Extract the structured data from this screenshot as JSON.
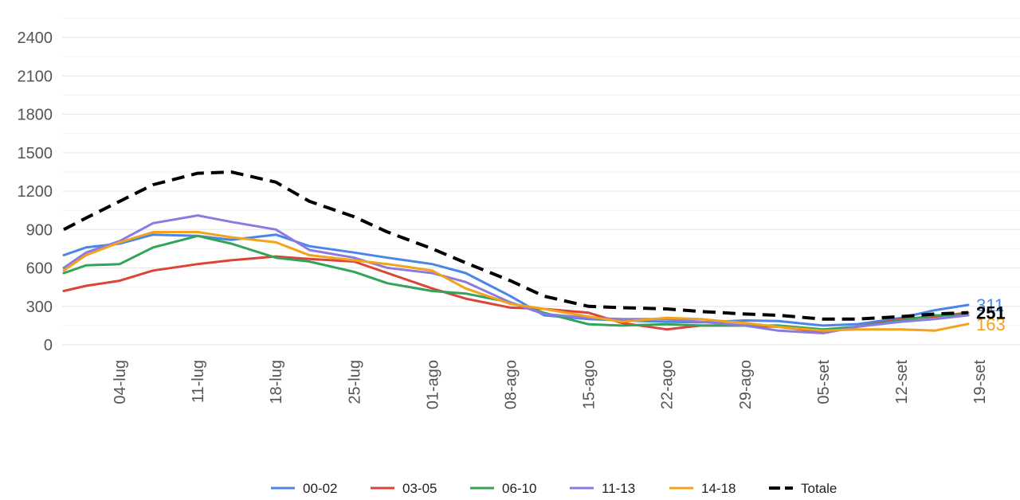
{
  "chart_data": {
    "type": "line",
    "title": "",
    "xlabel": "",
    "ylabel": "",
    "ylim": [
      0,
      2600
    ],
    "y_ticks": [
      0,
      300,
      600,
      900,
      1200,
      1500,
      1800,
      2100,
      2400
    ],
    "x_start": "2020-06-29",
    "x_end": "2020-09-18",
    "x_ticks": [
      {
        "date": "2020-07-04",
        "label": "04-lug"
      },
      {
        "date": "2020-07-11",
        "label": "11-lug"
      },
      {
        "date": "2020-07-18",
        "label": "18-lug"
      },
      {
        "date": "2020-07-25",
        "label": "25-lug"
      },
      {
        "date": "2020-08-01",
        "label": "01-ago"
      },
      {
        "date": "2020-08-08",
        "label": "08-ago"
      },
      {
        "date": "2020-08-15",
        "label": "15-ago"
      },
      {
        "date": "2020-08-22",
        "label": "22-ago"
      },
      {
        "date": "2020-08-29",
        "label": "29-ago"
      },
      {
        "date": "2020-09-05",
        "label": "05-set"
      },
      {
        "date": "2020-09-12",
        "label": "12-set"
      },
      {
        "date": "2020-09-19",
        "label": "19-set"
      }
    ],
    "grid": true,
    "legend_position": "bottom",
    "series": [
      {
        "name": "00-02",
        "color": "#4a86e8",
        "dashed": false,
        "end_label": "311",
        "points": [
          [
            "2020-06-29",
            700
          ],
          [
            "2020-07-01",
            760
          ],
          [
            "2020-07-04",
            790
          ],
          [
            "2020-07-07",
            860
          ],
          [
            "2020-07-11",
            850
          ],
          [
            "2020-07-14",
            820
          ],
          [
            "2020-07-18",
            860
          ],
          [
            "2020-07-21",
            770
          ],
          [
            "2020-07-25",
            720
          ],
          [
            "2020-07-28",
            680
          ],
          [
            "2020-08-01",
            630
          ],
          [
            "2020-08-04",
            560
          ],
          [
            "2020-08-08",
            380
          ],
          [
            "2020-08-11",
            230
          ],
          [
            "2020-08-15",
            200
          ],
          [
            "2020-08-18",
            190
          ],
          [
            "2020-08-22",
            180
          ],
          [
            "2020-08-25",
            175
          ],
          [
            "2020-08-29",
            190
          ],
          [
            "2020-09-01",
            185
          ],
          [
            "2020-09-05",
            150
          ],
          [
            "2020-09-08",
            160
          ],
          [
            "2020-09-12",
            210
          ],
          [
            "2020-09-15",
            270
          ],
          [
            "2020-09-18",
            311
          ]
        ]
      },
      {
        "name": "03-05",
        "color": "#db4437",
        "dashed": false,
        "end_label": "",
        "points": [
          [
            "2020-06-29",
            420
          ],
          [
            "2020-07-01",
            460
          ],
          [
            "2020-07-04",
            500
          ],
          [
            "2020-07-07",
            580
          ],
          [
            "2020-07-11",
            630
          ],
          [
            "2020-07-14",
            660
          ],
          [
            "2020-07-18",
            690
          ],
          [
            "2020-07-21",
            670
          ],
          [
            "2020-07-25",
            650
          ],
          [
            "2020-07-28",
            560
          ],
          [
            "2020-08-01",
            440
          ],
          [
            "2020-08-04",
            360
          ],
          [
            "2020-08-08",
            290
          ],
          [
            "2020-08-11",
            280
          ],
          [
            "2020-08-15",
            250
          ],
          [
            "2020-08-18",
            170
          ],
          [
            "2020-08-22",
            120
          ],
          [
            "2020-08-25",
            150
          ],
          [
            "2020-08-29",
            150
          ],
          [
            "2020-09-01",
            140
          ],
          [
            "2020-09-05",
            100
          ],
          [
            "2020-09-08",
            140
          ],
          [
            "2020-09-12",
            200
          ],
          [
            "2020-09-15",
            220
          ],
          [
            "2020-09-18",
            250
          ]
        ]
      },
      {
        "name": "06-10",
        "color": "#33a35a",
        "dashed": false,
        "end_label": "",
        "points": [
          [
            "2020-06-29",
            560
          ],
          [
            "2020-07-01",
            620
          ],
          [
            "2020-07-04",
            630
          ],
          [
            "2020-07-07",
            760
          ],
          [
            "2020-07-11",
            850
          ],
          [
            "2020-07-14",
            790
          ],
          [
            "2020-07-18",
            680
          ],
          [
            "2020-07-21",
            650
          ],
          [
            "2020-07-25",
            570
          ],
          [
            "2020-07-28",
            480
          ],
          [
            "2020-08-01",
            420
          ],
          [
            "2020-08-04",
            400
          ],
          [
            "2020-08-08",
            330
          ],
          [
            "2020-08-11",
            250
          ],
          [
            "2020-08-15",
            160
          ],
          [
            "2020-08-18",
            150
          ],
          [
            "2020-08-22",
            160
          ],
          [
            "2020-08-25",
            150
          ],
          [
            "2020-08-29",
            150
          ],
          [
            "2020-09-01",
            150
          ],
          [
            "2020-09-05",
            120
          ],
          [
            "2020-09-08",
            140
          ],
          [
            "2020-09-12",
            190
          ],
          [
            "2020-09-15",
            230
          ],
          [
            "2020-09-18",
            230
          ]
        ]
      },
      {
        "name": "11-13",
        "color": "#8b7ae0",
        "dashed": false,
        "end_label": "",
        "points": [
          [
            "2020-06-29",
            600
          ],
          [
            "2020-07-01",
            720
          ],
          [
            "2020-07-04",
            810
          ],
          [
            "2020-07-07",
            950
          ],
          [
            "2020-07-11",
            1010
          ],
          [
            "2020-07-14",
            960
          ],
          [
            "2020-07-18",
            900
          ],
          [
            "2020-07-21",
            740
          ],
          [
            "2020-07-25",
            680
          ],
          [
            "2020-07-28",
            600
          ],
          [
            "2020-08-01",
            560
          ],
          [
            "2020-08-04",
            490
          ],
          [
            "2020-08-08",
            330
          ],
          [
            "2020-08-11",
            240
          ],
          [
            "2020-08-15",
            210
          ],
          [
            "2020-08-18",
            200
          ],
          [
            "2020-08-22",
            200
          ],
          [
            "2020-08-25",
            180
          ],
          [
            "2020-08-29",
            150
          ],
          [
            "2020-09-01",
            110
          ],
          [
            "2020-09-05",
            90
          ],
          [
            "2020-09-08",
            140
          ],
          [
            "2020-09-12",
            180
          ],
          [
            "2020-09-15",
            200
          ],
          [
            "2020-09-18",
            230
          ]
        ]
      },
      {
        "name": "14-18",
        "color": "#f2a31b",
        "dashed": false,
        "end_label": "163",
        "points": [
          [
            "2020-06-29",
            580
          ],
          [
            "2020-07-01",
            700
          ],
          [
            "2020-07-04",
            800
          ],
          [
            "2020-07-07",
            880
          ],
          [
            "2020-07-11",
            880
          ],
          [
            "2020-07-14",
            840
          ],
          [
            "2020-07-18",
            800
          ],
          [
            "2020-07-21",
            700
          ],
          [
            "2020-07-25",
            660
          ],
          [
            "2020-07-28",
            630
          ],
          [
            "2020-08-01",
            580
          ],
          [
            "2020-08-04",
            440
          ],
          [
            "2020-08-08",
            320
          ],
          [
            "2020-08-11",
            280
          ],
          [
            "2020-08-15",
            220
          ],
          [
            "2020-08-18",
            180
          ],
          [
            "2020-08-22",
            210
          ],
          [
            "2020-08-25",
            200
          ],
          [
            "2020-08-29",
            170
          ],
          [
            "2020-09-01",
            140
          ],
          [
            "2020-09-05",
            110
          ],
          [
            "2020-09-08",
            120
          ],
          [
            "2020-09-12",
            120
          ],
          [
            "2020-09-15",
            110
          ],
          [
            "2020-09-18",
            163
          ]
        ]
      },
      {
        "name": "Totale",
        "color": "#000000",
        "dashed": true,
        "end_label": "251",
        "points": [
          [
            "2020-06-29",
            900
          ],
          [
            "2020-07-01",
            990
          ],
          [
            "2020-07-04",
            1120
          ],
          [
            "2020-07-07",
            1250
          ],
          [
            "2020-07-11",
            1340
          ],
          [
            "2020-07-14",
            1350
          ],
          [
            "2020-07-18",
            1270
          ],
          [
            "2020-07-21",
            1120
          ],
          [
            "2020-07-25",
            1000
          ],
          [
            "2020-07-28",
            880
          ],
          [
            "2020-08-01",
            750
          ],
          [
            "2020-08-04",
            640
          ],
          [
            "2020-08-08",
            500
          ],
          [
            "2020-08-11",
            380
          ],
          [
            "2020-08-15",
            300
          ],
          [
            "2020-08-18",
            290
          ],
          [
            "2020-08-22",
            280
          ],
          [
            "2020-08-25",
            260
          ],
          [
            "2020-08-29",
            240
          ],
          [
            "2020-09-01",
            230
          ],
          [
            "2020-09-05",
            200
          ],
          [
            "2020-09-08",
            200
          ],
          [
            "2020-09-12",
            220
          ],
          [
            "2020-09-15",
            240
          ],
          [
            "2020-09-18",
            251
          ]
        ]
      }
    ]
  }
}
